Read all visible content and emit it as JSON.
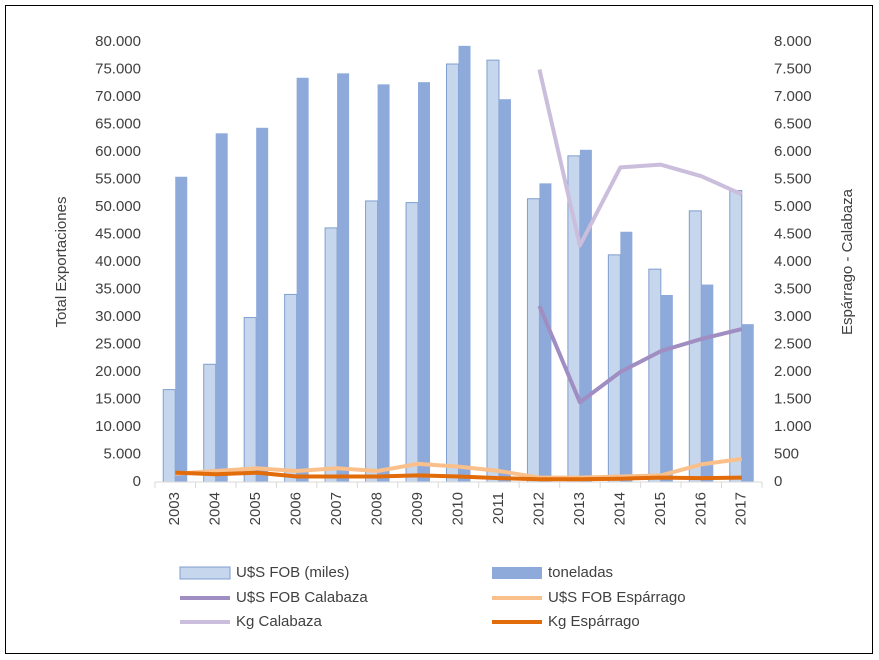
{
  "chart_data": {
    "type": "bar",
    "y_label": "Total Exportaciones",
    "y2_label": "Espárrago - Calabaza",
    "categories": [
      "2003",
      "2004",
      "2005",
      "2006",
      "2007",
      "2008",
      "2009",
      "2010",
      "2011",
      "2012",
      "2013",
      "2014",
      "2015",
      "2016",
      "2017"
    ],
    "series": [
      {
        "name": "U$S FOB (miles)",
        "type": "bar",
        "color": "#c6d6ec",
        "values": [
          16800,
          21400,
          29900,
          34100,
          46200,
          51100,
          50800,
          76000,
          76700,
          51500,
          59300,
          41300,
          38700,
          49300,
          53000
        ]
      },
      {
        "name": "toneladas",
        "type": "bar",
        "color": "#8eaadb",
        "values": [
          55500,
          63400,
          64400,
          73500,
          74300,
          72300,
          72700,
          79300,
          69600,
          54300,
          60400,
          45500,
          34000,
          35900,
          28700
        ]
      },
      {
        "name": "U$S FOB Calabaza",
        "type": "line",
        "axis": "y2",
        "color": "#a08dc2",
        "values": [
          null,
          null,
          null,
          null,
          null,
          null,
          null,
          null,
          null,
          3200,
          1450,
          2000,
          2380,
          2600,
          2780
        ]
      },
      {
        "name": "U$S FOB Espárrago",
        "type": "line",
        "axis": "y2",
        "color": "#f9c08c",
        "values": [
          150,
          200,
          250,
          200,
          250,
          200,
          330,
          280,
          200,
          80,
          80,
          100,
          120,
          320,
          420
        ]
      },
      {
        "name": "Kg Calabaza",
        "type": "line",
        "axis": "y2",
        "color": "#cbbddc",
        "values": [
          null,
          null,
          null,
          null,
          null,
          null,
          null,
          null,
          null,
          7500,
          4300,
          5720,
          5770,
          5560,
          5230
        ]
      },
      {
        "name": "Kg Espárrago",
        "type": "line",
        "axis": "y2",
        "color": "#e26b0a",
        "values": [
          170,
          140,
          170,
          100,
          100,
          100,
          120,
          100,
          70,
          50,
          50,
          60,
          80,
          70,
          80
        ]
      }
    ],
    "ylim": [
      0,
      80000
    ],
    "yticks": [
      0,
      {
        "value": 5000,
        "label": "5.000"
      },
      {
        "value": 10000,
        "label": "10.000"
      },
      {
        "value": 15000,
        "label": "15.000"
      },
      {
        "value": 20000,
        "label": "20.000"
      },
      {
        "value": 25000,
        "label": "25.000"
      },
      {
        "value": 30000,
        "label": "30.000"
      },
      {
        "value": 35000,
        "label": "35.000"
      },
      {
        "value": 40000,
        "label": "40.000"
      },
      {
        "value": 45000,
        "label": "45.000"
      },
      {
        "value": 50000,
        "label": "50.000"
      },
      {
        "value": 55000,
        "label": "55.000"
      },
      {
        "value": 60000,
        "label": "60.000"
      },
      {
        "value": 65000,
        "label": "65.000"
      },
      {
        "value": 70000,
        "label": "70.000"
      },
      {
        "value": 75000,
        "label": "75.000"
      },
      {
        "value": 80000,
        "label": "80.000"
      }
    ],
    "y2lim": [
      0,
      8000
    ],
    "y2ticks": [
      0,
      500,
      {
        "value": 1000,
        "label": "1.000"
      },
      {
        "value": 1500,
        "label": "1.500"
      },
      {
        "value": 2000,
        "label": "2.000"
      },
      {
        "value": 2500,
        "label": "2.500"
      },
      {
        "value": 3000,
        "label": "3.000"
      },
      {
        "value": 3500,
        "label": "3.500"
      },
      {
        "value": 4000,
        "label": "4.000"
      },
      {
        "value": 4500,
        "label": "4.500"
      },
      {
        "value": 5000,
        "label": "5.000"
      },
      {
        "value": 5500,
        "label": "5.500"
      },
      {
        "value": 6000,
        "label": "6.000"
      },
      {
        "value": 6500,
        "label": "6.500"
      },
      {
        "value": 7000,
        "label": "7.000"
      },
      {
        "value": 7500,
        "label": "7.500"
      },
      {
        "value": 8000,
        "label": "8.000"
      }
    ],
    "grid": false
  }
}
